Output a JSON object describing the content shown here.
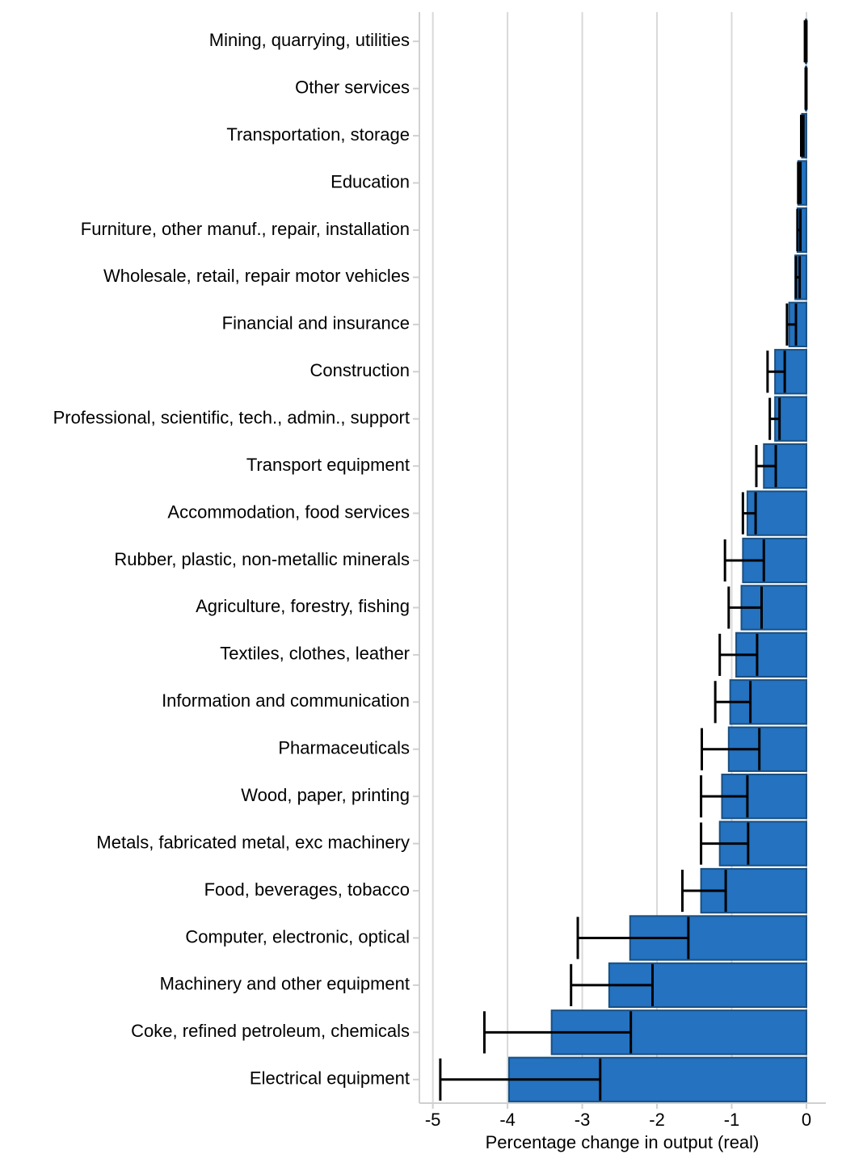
{
  "chart_data": {
    "type": "bar",
    "orientation": "horizontal",
    "x_label": "Percentage change in output (real)",
    "categories": [
      "Mining, quarrying, utilities",
      "Other services",
      "Transportation, storage",
      "Education",
      "Furniture, other manuf., repair, installation",
      "Wholesale, retail, repair motor vehicles",
      "Financial and insurance",
      "Construction",
      "Professional, scientific, tech., admin., support",
      "Transport equipment",
      "Accommodation, food services",
      "Rubber, plastic, non-metallic minerals",
      "Agriculture, forestry, fishing",
      "Textiles, clothes, leather",
      "Information and communication",
      "Pharmaceuticals",
      "Wood, paper, printing",
      "Metals, fabricated metal, exc machinery",
      "Food, beverages, tobacco",
      "Computer, electronic, optical",
      "Machinery and other equipment",
      "Coke, refined petroleum, chemicals",
      "Electrical equipment"
    ],
    "values": [
      -0.01,
      -0.01,
      -0.06,
      -0.11,
      -0.12,
      -0.15,
      -0.23,
      -0.42,
      -0.42,
      -0.57,
      -0.79,
      -0.85,
      -0.87,
      -0.94,
      -1.02,
      -1.04,
      -1.13,
      -1.16,
      -1.41,
      -2.36,
      -2.64,
      -3.41,
      -3.98
    ],
    "error_low": [
      -0.02,
      -0.01,
      -0.07,
      -0.11,
      -0.12,
      -0.14,
      -0.26,
      -0.52,
      -0.49,
      -0.67,
      -0.85,
      -1.09,
      -1.04,
      -1.16,
      -1.22,
      -1.4,
      -1.41,
      -1.41,
      -1.66,
      -3.06,
      -3.15,
      -4.31,
      -4.9
    ],
    "error_high": [
      0,
      0,
      -0.04,
      -0.08,
      -0.08,
      -0.09,
      -0.14,
      -0.29,
      -0.36,
      -0.41,
      -0.68,
      -0.57,
      -0.6,
      -0.66,
      -0.75,
      -0.63,
      -0.79,
      -0.78,
      -1.08,
      -1.58,
      -2.06,
      -2.35,
      -2.76
    ],
    "color": "#2472c0",
    "edge_color": "#1a4f80",
    "xlim": [
      -5.18,
      0.26
    ],
    "xticks": [
      -5,
      -4,
      -3,
      -2,
      -1,
      0
    ],
    "grid": true
  }
}
